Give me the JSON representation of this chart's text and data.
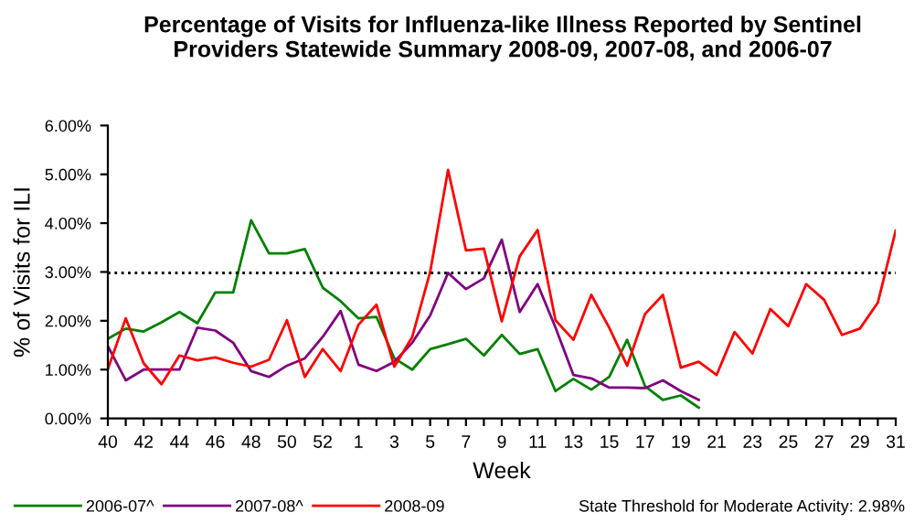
{
  "chart_data": {
    "type": "line",
    "title": "Percentage of Visits for Influenza-like Illness Reported by Sentinel\nProviders Statewide Summary 2008-09, 2007-08, and 2006-07",
    "xlabel": "Week",
    "ylabel": "% of Visits for ILI",
    "categories": [
      "40",
      null,
      "42",
      null,
      "44",
      null,
      "46",
      null,
      "48",
      null,
      "50",
      null,
      "52",
      null,
      "1",
      null,
      "3",
      null,
      "5",
      null,
      "7",
      null,
      "9",
      null,
      "11",
      null,
      "13",
      null,
      "15",
      null,
      "17",
      null,
      "19",
      null,
      "21",
      null,
      "23",
      null,
      "25",
      null,
      "27",
      null,
      "29",
      null,
      "31"
    ],
    "series": [
      {
        "name": "2006-07^",
        "color": "#008000",
        "values": [
          1.63,
          1.84,
          1.78,
          1.97,
          2.18,
          1.95,
          2.58,
          2.58,
          4.06,
          3.38,
          3.38,
          3.47,
          2.68,
          2.4,
          2.05,
          2.08,
          1.23,
          1.0,
          1.42,
          1.52,
          1.63,
          1.29,
          1.71,
          1.32,
          1.42,
          0.56,
          0.81,
          0.59,
          0.85,
          1.61,
          0.66,
          0.38,
          0.47,
          0.22,
          null,
          null,
          null,
          null,
          null,
          null,
          null,
          null,
          null,
          null,
          null
        ]
      },
      {
        "name": "2007-08^",
        "color": "#800080",
        "values": [
          1.48,
          0.78,
          1.0,
          1.0,
          1.0,
          1.86,
          1.8,
          1.55,
          0.97,
          0.85,
          1.08,
          1.23,
          1.67,
          2.2,
          1.1,
          0.97,
          1.16,
          1.55,
          2.11,
          2.98,
          2.65,
          2.87,
          3.66,
          2.18,
          2.75,
          1.86,
          0.89,
          0.82,
          0.63,
          0.63,
          0.62,
          0.78,
          0.56,
          0.38,
          null,
          null,
          null,
          null,
          null,
          null,
          null,
          null,
          null,
          null,
          null
        ]
      },
      {
        "name": "2008-09",
        "color": "#ff0000",
        "values": [
          1.01,
          2.05,
          1.13,
          0.7,
          1.29,
          1.19,
          1.25,
          1.14,
          1.06,
          1.2,
          2.01,
          0.85,
          1.42,
          0.97,
          1.92,
          2.33,
          1.06,
          1.67,
          3.0,
          5.09,
          3.44,
          3.48,
          1.99,
          3.32,
          3.86,
          2.01,
          1.61,
          2.53,
          1.86,
          1.08,
          2.14,
          2.53,
          1.04,
          1.16,
          0.89,
          1.77,
          1.33,
          2.24,
          1.89,
          2.75,
          2.43,
          1.71,
          1.84,
          2.37,
          3.85
        ]
      }
    ],
    "ylim": [
      0,
      6
    ],
    "yticks": [
      {
        "value": 0,
        "label": "0.00%"
      },
      {
        "value": 1,
        "label": "1.00%"
      },
      {
        "value": 2,
        "label": "2.00%"
      },
      {
        "value": 3,
        "label": "3.00%"
      },
      {
        "value": 4,
        "label": "4.00%"
      },
      {
        "value": 5,
        "label": "5.00%"
      },
      {
        "value": 6,
        "label": "6.00%"
      }
    ],
    "ref_lines": [
      {
        "axis": "y",
        "value": 2.98,
        "color": "#000000",
        "line_style": "dotted"
      }
    ],
    "annotations": [
      "State Threshold for Moderate Activity: 2.98%"
    ],
    "grid": false,
    "legend": "bottom",
    "line_style": "solid",
    "marker": "none"
  }
}
